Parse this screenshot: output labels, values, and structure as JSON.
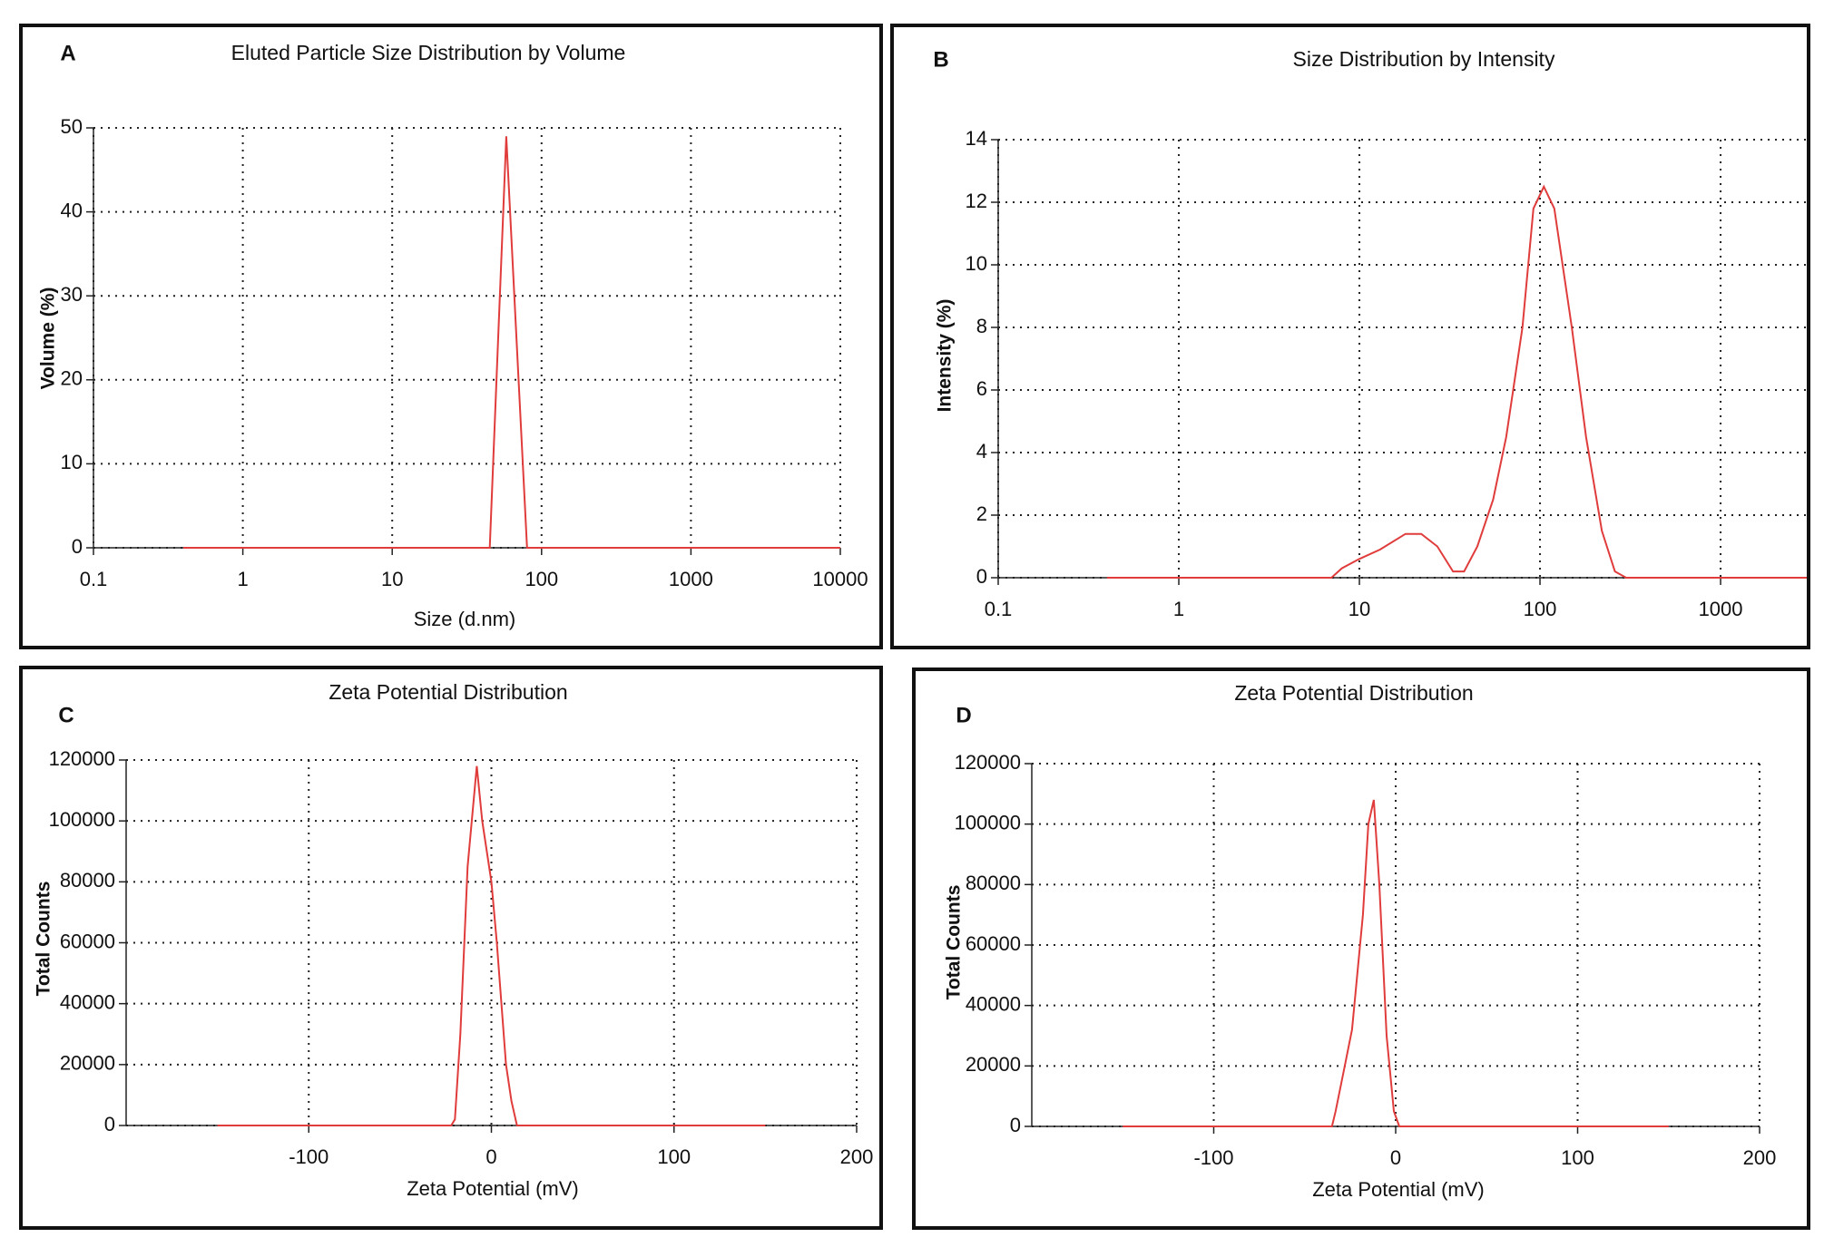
{
  "chart_data": [
    {
      "type": "line",
      "annotation": "A",
      "title": "Eluted Particle Size Distribution by Volume",
      "xlabel": "Size (d.nm)",
      "ylabel": "Volume (%)",
      "xscale": "log",
      "xlim": [
        0.1,
        10000
      ],
      "xticks": [
        0.1,
        1,
        10,
        100,
        1000,
        10000
      ],
      "ylim": [
        0,
        50
      ],
      "yticks": [
        0,
        10,
        20,
        30,
        40,
        50
      ],
      "grid": true,
      "color": "#e03c3c",
      "x": [
        0.4,
        45,
        58,
        80,
        10000
      ],
      "values": [
        0,
        0,
        49,
        0,
        0
      ]
    },
    {
      "type": "line",
      "annotation": "B",
      "title": "Size Distribution by Intensity",
      "ylabel": "Intensity (%)",
      "xscale": "log",
      "xlim": [
        0.1,
        3000
      ],
      "xticks": [
        0.1,
        1,
        10,
        100,
        1000
      ],
      "ylim": [
        0,
        14
      ],
      "yticks": [
        0,
        2,
        4,
        6,
        8,
        10,
        12,
        14
      ],
      "grid": true,
      "color": "#e03c3c",
      "x": [
        0.4,
        7,
        8,
        10,
        13,
        18,
        22,
        27,
        33,
        38,
        45,
        55,
        65,
        80,
        92,
        105,
        120,
        150,
        180,
        220,
        260,
        300,
        3000
      ],
      "values": [
        0,
        0,
        0.3,
        0.6,
        0.9,
        1.4,
        1.4,
        1.0,
        0.2,
        0.2,
        1.0,
        2.5,
        4.5,
        8,
        11.8,
        12.5,
        11.8,
        8,
        4.5,
        1.5,
        0.2,
        0,
        0
      ]
    },
    {
      "type": "line",
      "annotation": "C",
      "title": "Zeta Potential Distribution",
      "xlabel": "Zeta Potential (mV)",
      "ylabel": "Total Counts",
      "xlim": [
        -200,
        200
      ],
      "xticks": [
        -100,
        0,
        100,
        200
      ],
      "ylim": [
        0,
        120000
      ],
      "yticks": [
        0,
        20000,
        40000,
        60000,
        80000,
        100000,
        120000
      ],
      "grid": true,
      "color": "#e03c3c",
      "x": [
        -150,
        -22,
        -20,
        -17,
        -13,
        -8,
        -5,
        0,
        3,
        8,
        11,
        14,
        150
      ],
      "values": [
        0,
        0,
        2000,
        30000,
        85000,
        118000,
        100000,
        80000,
        60000,
        20000,
        8000,
        0,
        0
      ]
    },
    {
      "type": "line",
      "annotation": "D",
      "title": "Zeta Potential Distribution",
      "xlabel": "Zeta Potential (mV)",
      "ylabel": "Total Counts",
      "xlim": [
        -200,
        200
      ],
      "xticks": [
        -100,
        0,
        100,
        200
      ],
      "ylim": [
        0,
        120000
      ],
      "yticks": [
        0,
        20000,
        40000,
        60000,
        80000,
        100000,
        120000
      ],
      "grid": true,
      "color": "#e03c3c",
      "x": [
        -150,
        -35,
        -33,
        -28,
        -24,
        -18,
        -15,
        -12,
        -9,
        -5,
        -1,
        2,
        150
      ],
      "values": [
        0,
        0,
        5000,
        20000,
        32000,
        70000,
        100000,
        108000,
        80000,
        30000,
        5000,
        0,
        0
      ]
    }
  ]
}
